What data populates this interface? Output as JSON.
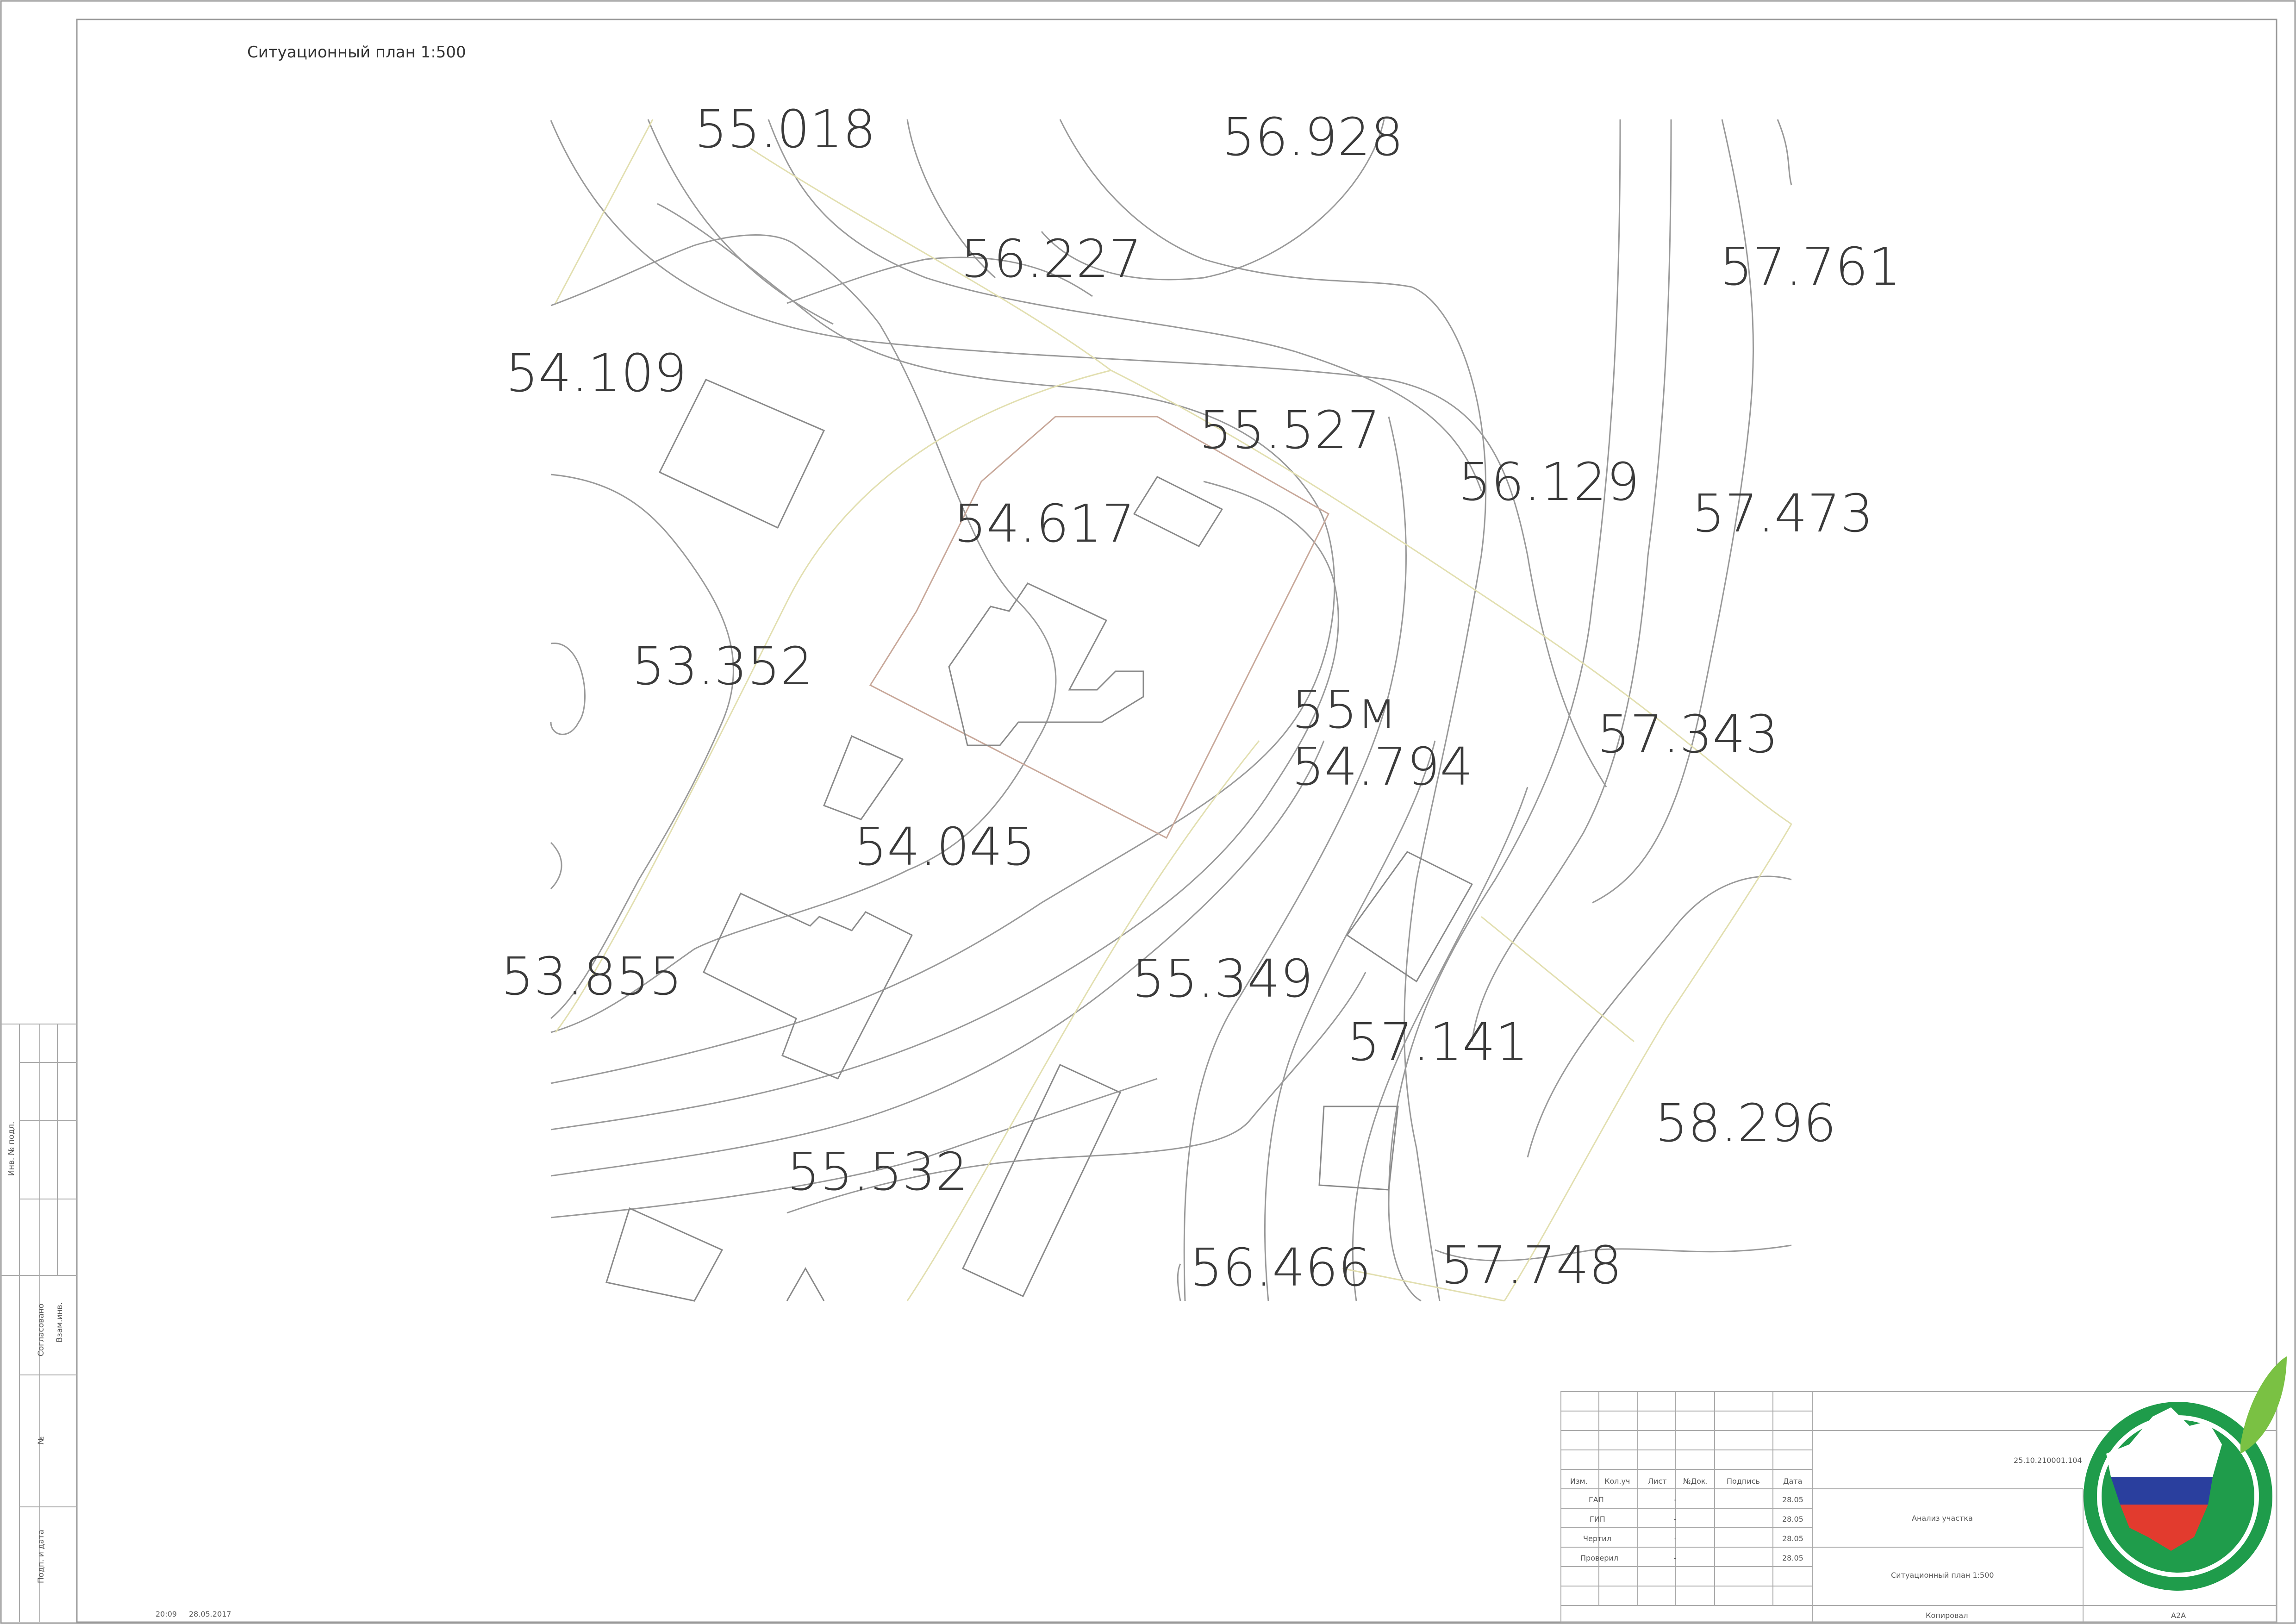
{
  "sheet": {
    "title": "Ситуационный план 1:500",
    "plot_label": "55м",
    "elevations": [
      "55.018",
      "56.928",
      "56.227",
      "57.761",
      "54.109",
      "55.527",
      "56.129",
      "57.473",
      "54.617",
      "53.352",
      "57.343",
      "54.794",
      "54.045",
      "53.855",
      "55.349",
      "57.141",
      "58.296",
      "55.532",
      "56.466",
      "57.748"
    ]
  },
  "side_stamp": {
    "inv_no": "Инв. № подл.",
    "sign_date": "Подп. и дата",
    "agreed": "Согласовано",
    "replaced": "Взам.инв.",
    "no": "№"
  },
  "title_block": {
    "headers": [
      "Изм.",
      "Кол.уч",
      "Лист",
      "№Док.",
      "Подпись",
      "Дата"
    ],
    "rows": [
      {
        "role": "ГАП",
        "dash": "-",
        "date": "28.05"
      },
      {
        "role": "ГИП",
        "dash": "-",
        "date": "28.05"
      },
      {
        "role": "Чертил",
        "dash": "-",
        "date": "28.05"
      },
      {
        "role": "Проверил",
        "dash": "-",
        "date": "28.05"
      }
    ],
    "code": "25.10.210001.104",
    "analysis": "Анализ участка",
    "sheet_name": "Ситуационный план 1:500"
  },
  "footer": {
    "time": "20:09",
    "date": "28.05.2017",
    "copied": "Копировал",
    "format": "А2А"
  },
  "colors": {
    "logo_green": "#1f9c4b",
    "logo_blue": "#2a3f9e",
    "logo_red": "#e23b2e",
    "leaf": "#7ac143"
  }
}
